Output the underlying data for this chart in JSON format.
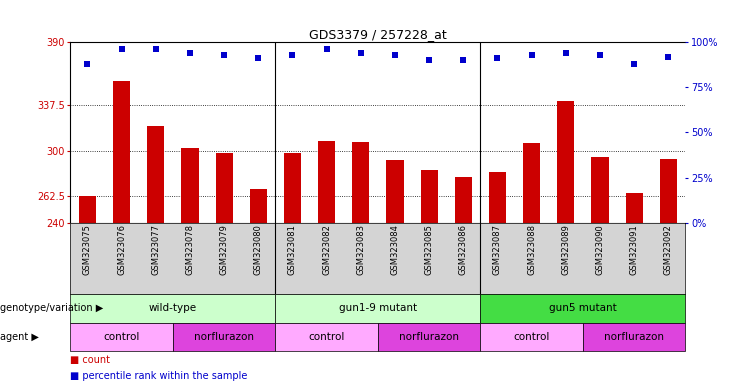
{
  "title": "GDS3379 / 257228_at",
  "samples": [
    "GSM323075",
    "GSM323076",
    "GSM323077",
    "GSM323078",
    "GSM323079",
    "GSM323080",
    "GSM323081",
    "GSM323082",
    "GSM323083",
    "GSM323084",
    "GSM323085",
    "GSM323086",
    "GSM323087",
    "GSM323088",
    "GSM323089",
    "GSM323090",
    "GSM323091",
    "GSM323092"
  ],
  "counts": [
    262,
    358,
    320,
    302,
    298,
    268,
    298,
    308,
    307,
    292,
    284,
    278,
    282,
    306,
    341,
    295,
    265,
    293
  ],
  "percentiles": [
    88,
    96,
    96,
    94,
    93,
    91,
    93,
    96,
    94,
    93,
    90,
    90,
    91,
    93,
    94,
    93,
    88,
    92
  ],
  "ymin": 240,
  "ymax": 390,
  "yticks_left": [
    240,
    262.5,
    300,
    337.5,
    390
  ],
  "yticks_right": [
    0,
    25,
    50,
    75,
    100
  ],
  "bar_color": "#CC0000",
  "dot_color": "#0000CC",
  "xtick_bg": "#d4d4d4",
  "genotype_groups": [
    {
      "label": "wild-type",
      "start": 0,
      "end": 6,
      "color": "#ccffcc"
    },
    {
      "label": "gun1-9 mutant",
      "start": 6,
      "end": 12,
      "color": "#ccffcc"
    },
    {
      "label": "gun5 mutant",
      "start": 12,
      "end": 18,
      "color": "#44dd44"
    }
  ],
  "agent_groups": [
    {
      "label": "control",
      "start": 0,
      "end": 3,
      "color": "#ffaaff"
    },
    {
      "label": "norflurazon",
      "start": 3,
      "end": 6,
      "color": "#dd44dd"
    },
    {
      "label": "control",
      "start": 6,
      "end": 9,
      "color": "#ffaaff"
    },
    {
      "label": "norflurazon",
      "start": 9,
      "end": 12,
      "color": "#dd44dd"
    },
    {
      "label": "control",
      "start": 12,
      "end": 15,
      "color": "#ffaaff"
    },
    {
      "label": "norflurazon",
      "start": 15,
      "end": 18,
      "color": "#dd44dd"
    }
  ],
  "legend_count_label": "count",
  "legend_percentile_label": "percentile rank within the sample",
  "genotype_label": "genotype/variation",
  "agent_label": "agent",
  "group_separators": [
    5.5,
    11.5
  ]
}
